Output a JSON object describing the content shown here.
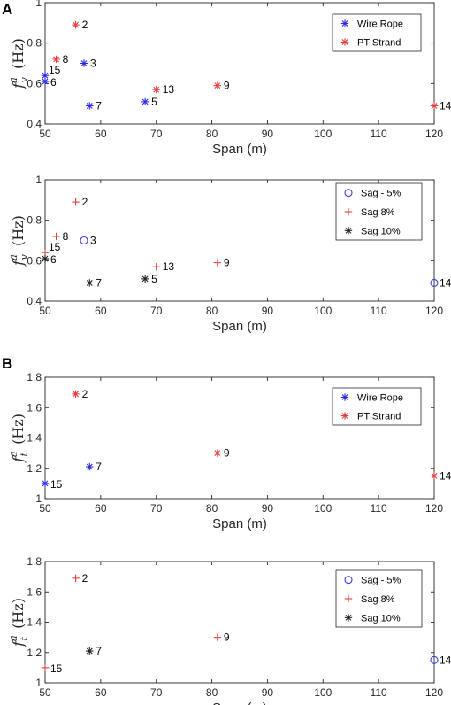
{
  "panel_letters": [
    "A",
    "B"
  ],
  "colors": {
    "wire_rope": "#2a2ae6",
    "pt_strand": "#e63c3c",
    "sag5": "#3c3cd8",
    "sag8": "#e63c3c",
    "sag10": "#222222"
  },
  "chart_data": [
    {
      "type": "scatter",
      "xlabel": "Span (m)",
      "ylabel": {
        "base": "f",
        "sup": "a",
        "sub": "v",
        "unit": "(Hz)"
      },
      "xlim": [
        50,
        120
      ],
      "ylim": [
        0.4,
        1.0
      ],
      "xticks": [
        50,
        60,
        70,
        80,
        90,
        100,
        110,
        120
      ],
      "yticks": [
        0.4,
        0.6,
        0.8,
        1.0
      ],
      "ytick_labels": [
        "0.4",
        "0.6",
        "0.8",
        "1"
      ],
      "legend_position": "top-right",
      "series": [
        {
          "name": "Wire Rope",
          "marker": "asterisk",
          "color": "#2a2ae6",
          "points": [
            {
              "x": 50,
              "y": 0.64,
              "label": "15"
            },
            {
              "x": 50,
              "y": 0.61,
              "label": "6"
            },
            {
              "x": 57,
              "y": 0.7,
              "label": "3"
            },
            {
              "x": 58,
              "y": 0.49,
              "label": "7"
            },
            {
              "x": 68,
              "y": 0.51,
              "label": "5"
            }
          ]
        },
        {
          "name": "PT Strand",
          "marker": "asterisk",
          "color": "#e63c3c",
          "points": [
            {
              "x": 55.5,
              "y": 0.89,
              "label": "2"
            },
            {
              "x": 52,
              "y": 0.72,
              "label": "8"
            },
            {
              "x": 70,
              "y": 0.57,
              "label": "13"
            },
            {
              "x": 81,
              "y": 0.59,
              "label": "9"
            },
            {
              "x": 120,
              "y": 0.49,
              "label": "14"
            }
          ]
        }
      ]
    },
    {
      "type": "scatter",
      "xlabel": "Span (m)",
      "ylabel": {
        "base": "f",
        "sup": "a",
        "sub": "v",
        "unit": "(Hz)"
      },
      "xlim": [
        50,
        120
      ],
      "ylim": [
        0.4,
        1.0
      ],
      "xticks": [
        50,
        60,
        70,
        80,
        90,
        100,
        110,
        120
      ],
      "yticks": [
        0.4,
        0.6,
        0.8,
        1.0
      ],
      "ytick_labels": [
        "0.4",
        "0.6",
        "0.8",
        "1"
      ],
      "legend_position": "top-right",
      "series": [
        {
          "name": "Sag - 5%",
          "marker": "circle",
          "color": "#3c3cd8",
          "points": [
            {
              "x": 57,
              "y": 0.7,
              "label": "3"
            },
            {
              "x": 120,
              "y": 0.49,
              "label": "14"
            }
          ]
        },
        {
          "name": "Sag 8%",
          "marker": "plus",
          "color": "#e63c3c",
          "points": [
            {
              "x": 55.5,
              "y": 0.89,
              "label": "2"
            },
            {
              "x": 52,
              "y": 0.72,
              "label": "8"
            },
            {
              "x": 50,
              "y": 0.64,
              "label": "15"
            },
            {
              "x": 70,
              "y": 0.57,
              "label": "13"
            },
            {
              "x": 81,
              "y": 0.59,
              "label": "9"
            }
          ]
        },
        {
          "name": "Sag 10%",
          "marker": "asterisk",
          "color": "#222222",
          "points": [
            {
              "x": 50,
              "y": 0.61,
              "label": "6"
            },
            {
              "x": 58,
              "y": 0.49,
              "label": "7"
            },
            {
              "x": 68,
              "y": 0.51,
              "label": "5"
            }
          ]
        }
      ]
    },
    {
      "type": "scatter",
      "xlabel": "Span (m)",
      "ylabel": {
        "base": "f",
        "sup": "a",
        "sub": "t",
        "unit": "(Hz)"
      },
      "xlim": [
        50,
        120
      ],
      "ylim": [
        1.0,
        1.8
      ],
      "xticks": [
        50,
        60,
        70,
        80,
        90,
        100,
        110,
        120
      ],
      "yticks": [
        1.0,
        1.2,
        1.4,
        1.6,
        1.8
      ],
      "ytick_labels": [
        "1",
        "1.2",
        "1.4",
        "1.6",
        "1.8"
      ],
      "legend_position": "top-right",
      "series": [
        {
          "name": "Wire Rope",
          "marker": "asterisk",
          "color": "#2a2ae6",
          "points": [
            {
              "x": 58,
              "y": 1.21,
              "label": "7"
            },
            {
              "x": 50,
              "y": 1.1,
              "label": "15"
            }
          ]
        },
        {
          "name": "PT Strand",
          "marker": "asterisk",
          "color": "#e63c3c",
          "points": [
            {
              "x": 55.5,
              "y": 1.69,
              "label": "2"
            },
            {
              "x": 81,
              "y": 1.3,
              "label": "9"
            },
            {
              "x": 120,
              "y": 1.15,
              "label": "14"
            }
          ]
        }
      ]
    },
    {
      "type": "scatter",
      "xlabel": "Span (m)",
      "ylabel": {
        "base": "f",
        "sup": "a",
        "sub": "t",
        "unit": "(Hz)"
      },
      "xlim": [
        50,
        120
      ],
      "ylim": [
        1.0,
        1.8
      ],
      "xticks": [
        50,
        60,
        70,
        80,
        90,
        100,
        110,
        120
      ],
      "yticks": [
        1.0,
        1.2,
        1.4,
        1.6,
        1.8
      ],
      "ytick_labels": [
        "1",
        "1.2",
        "1.4",
        "1.6",
        "1.8"
      ],
      "legend_position": "top-right",
      "series": [
        {
          "name": "Sag - 5%",
          "marker": "circle",
          "color": "#3c3cd8",
          "points": [
            {
              "x": 120,
              "y": 1.15,
              "label": "14"
            }
          ]
        },
        {
          "name": "Sag 8%",
          "marker": "plus",
          "color": "#e63c3c",
          "points": [
            {
              "x": 55.5,
              "y": 1.69,
              "label": "2"
            },
            {
              "x": 81,
              "y": 1.3,
              "label": "9"
            },
            {
              "x": 50,
              "y": 1.1,
              "label": "15"
            }
          ]
        },
        {
          "name": "Sag 10%",
          "marker": "asterisk",
          "color": "#222222",
          "points": [
            {
              "x": 58,
              "y": 1.21,
              "label": "7"
            }
          ]
        }
      ]
    }
  ]
}
